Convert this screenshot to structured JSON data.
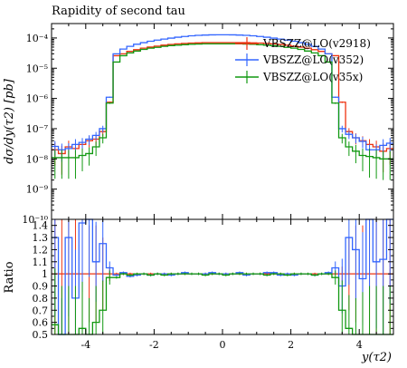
{
  "chart_data": [
    {
      "type": "line",
      "title": "Rapidity of second tau",
      "ylabel": "dσ/dy(τ2) [pb]",
      "xlim": [
        -5,
        5
      ],
      "ylim": [
        1e-10,
        0.0003
      ],
      "y_scale": "log",
      "y_ticks": [
        {
          "v": 1e-10,
          "label": "10⁻¹⁰"
        },
        {
          "v": 1e-09,
          "label": "10⁻⁹"
        },
        {
          "v": 1e-08,
          "label": "10⁻⁸"
        },
        {
          "v": 1e-07,
          "label": "10⁻⁷"
        },
        {
          "v": 1e-06,
          "label": "10⁻⁶"
        },
        {
          "v": 1e-05,
          "label": "10⁻⁵"
        },
        {
          "v": 0.0001,
          "label": "10⁻⁴"
        }
      ],
      "legend_position": "top-right",
      "x_edges": [
        -5.0,
        -4.8,
        -4.6,
        -4.4,
        -4.2,
        -4.0,
        -3.8,
        -3.6,
        -3.4,
        -3.2,
        -3.0,
        -2.8,
        -2.6,
        -2.4,
        -2.2,
        -2.0,
        -1.8,
        -1.6,
        -1.4,
        -1.2,
        -1.0,
        -0.8,
        -0.6,
        -0.4,
        -0.2,
        0.0,
        0.2,
        0.4,
        0.6,
        0.8,
        1.0,
        1.2,
        1.4,
        1.6,
        1.8,
        2.0,
        2.2,
        2.4,
        2.6,
        2.8,
        3.0,
        3.2,
        3.4,
        3.6,
        3.8,
        4.0,
        4.2,
        4.4,
        4.6,
        4.8,
        5.0
      ],
      "series": [
        {
          "name": "VBSZZ@LO(v2918)",
          "color": "#ee3311",
          "values": [
            2e-08,
            1.5e-08,
            2.5e-08,
            2.2e-08,
            3e-08,
            4e-08,
            4.5e-08,
            8e-08,
            7.5e-07,
            2.6e-05,
            3e-05,
            3.6e-05,
            4.1e-05,
            4.6e-05,
            5e-05,
            5.4e-05,
            5.8e-05,
            6.1e-05,
            6.4e-05,
            6.6e-05,
            6.8e-05,
            6.9e-05,
            7e-05,
            7e-05,
            7e-05,
            7e-05,
            7e-05,
            7e-05,
            7e-05,
            6.9e-05,
            6.8e-05,
            6.6e-05,
            6.4e-05,
            6.1e-05,
            5.8e-05,
            5.4e-05,
            5e-05,
            4.6e-05,
            4.1e-05,
            3.6e-05,
            3e-05,
            2.6e-05,
            7.5e-07,
            8e-08,
            5e-08,
            4e-08,
            3e-08,
            2.5e-08,
            1.8e-08,
            2.2e-08
          ],
          "errors": [
            0.7,
            0.8,
            0.6,
            0.6,
            0.5,
            0.4,
            0.4,
            0.3,
            0.06,
            0.01,
            0.01,
            0.01,
            0.01,
            0.01,
            0.01,
            0.01,
            0.01,
            0.01,
            0.01,
            0.01,
            0.01,
            0.01,
            0.01,
            0.01,
            0.01,
            0.01,
            0.01,
            0.01,
            0.01,
            0.01,
            0.01,
            0.01,
            0.01,
            0.01,
            0.01,
            0.01,
            0.01,
            0.01,
            0.01,
            0.01,
            0.01,
            0.01,
            0.06,
            0.3,
            0.4,
            0.4,
            0.5,
            0.6,
            0.8,
            0.7
          ]
        },
        {
          "name": "VBSZZ@LO(v352)",
          "color": "#3366ff",
          "values": [
            2.6e-08,
            2e-08,
            2.2e-08,
            3e-08,
            3.5e-08,
            4.5e-08,
            6e-08,
            1e-07,
            1.1e-06,
            3e-05,
            4.3e-05,
            5.3e-05,
            6.2e-05,
            7e-05,
            7.8e-05,
            8.5e-05,
            9.2e-05,
            9.9e-05,
            0.000106,
            0.000112,
            0.000118,
            0.000122,
            0.000125,
            0.000127,
            0.000128,
            0.000128,
            0.000127,
            0.000125,
            0.000122,
            0.000118,
            0.000112,
            0.000106,
            9.9e-05,
            9.2e-05,
            8.5e-05,
            7.8e-05,
            7e-05,
            6.2e-05,
            5.3e-05,
            4.3e-05,
            3e-05,
            1.1e-06,
            1e-07,
            6.5e-08,
            5e-08,
            3.8e-08,
            2e-08,
            2e-08,
            2.8e-08,
            3.3e-08
          ],
          "errors": [
            0.5,
            0.6,
            0.5,
            0.5,
            0.4,
            0.35,
            0.3,
            0.25,
            0.05,
            0.01,
            0.01,
            0.01,
            0.01,
            0.01,
            0.01,
            0.01,
            0.01,
            0.01,
            0.01,
            0.01,
            0.01,
            0.01,
            0.01,
            0.01,
            0.01,
            0.01,
            0.01,
            0.01,
            0.01,
            0.01,
            0.01,
            0.01,
            0.01,
            0.01,
            0.01,
            0.01,
            0.01,
            0.01,
            0.01,
            0.01,
            0.01,
            0.05,
            0.25,
            0.3,
            0.35,
            0.4,
            0.5,
            0.5,
            0.6,
            0.5
          ]
        },
        {
          "name": "VBSZZ@LO(v35x)",
          "color": "#119911",
          "values": [
            1.1e-08,
            1.1e-08,
            1.1e-08,
            1.1e-08,
            1.3e-08,
            1.5e-08,
            2.5e-08,
            5e-08,
            7e-07,
            1.6e-05,
            2.6e-05,
            3.2e-05,
            3.7e-05,
            4.2e-05,
            4.6e-05,
            4.9e-05,
            5.3e-05,
            5.6e-05,
            5.8e-05,
            6e-05,
            6.2e-05,
            6.3e-05,
            6.4e-05,
            6.4e-05,
            6.4e-05,
            6.4e-05,
            6.4e-05,
            6.4e-05,
            6.3e-05,
            6.2e-05,
            6e-05,
            5.8e-05,
            5.6e-05,
            5.3e-05,
            4.9e-05,
            4.6e-05,
            4.2e-05,
            3.7e-05,
            3.2e-05,
            2.6e-05,
            1.6e-05,
            7e-07,
            5e-08,
            2.5e-08,
            1.8e-08,
            1.3e-08,
            1.2e-08,
            1.1e-08,
            1e-08,
            1e-08
          ],
          "errors": [
            0.8,
            0.8,
            0.8,
            0.8,
            0.7,
            0.6,
            0.5,
            0.35,
            0.06,
            0.01,
            0.01,
            0.01,
            0.01,
            0.01,
            0.01,
            0.01,
            0.01,
            0.01,
            0.01,
            0.01,
            0.01,
            0.01,
            0.01,
            0.01,
            0.01,
            0.01,
            0.01,
            0.01,
            0.01,
            0.01,
            0.01,
            0.01,
            0.01,
            0.01,
            0.01,
            0.01,
            0.01,
            0.01,
            0.01,
            0.01,
            0.01,
            0.06,
            0.35,
            0.5,
            0.6,
            0.7,
            0.8,
            0.8,
            0.8,
            0.8
          ]
        }
      ]
    },
    {
      "type": "line",
      "ylabel": "Ratio",
      "xlabel": "y(τ2)",
      "xlim": [
        -5,
        5
      ],
      "ylim": [
        0.5,
        1.45
      ],
      "x_ticks": [
        {
          "v": -4,
          "label": "-4"
        },
        {
          "v": -2,
          "label": "-2"
        },
        {
          "v": 0,
          "label": "0"
        },
        {
          "v": 2,
          "label": "2"
        },
        {
          "v": 4,
          "label": "4"
        }
      ],
      "y_ticks": [
        {
          "v": 0.5,
          "label": "0.5"
        },
        {
          "v": 0.6,
          "label": "0.6"
        },
        {
          "v": 0.7,
          "label": "0.7"
        },
        {
          "v": 0.8,
          "label": "0.8"
        },
        {
          "v": 0.9,
          "label": "0.9"
        },
        {
          "v": 1.0,
          "label": "1"
        },
        {
          "v": 1.1,
          "label": "1.1"
        },
        {
          "v": 1.2,
          "label": "1.2"
        },
        {
          "v": 1.3,
          "label": "1.3"
        },
        {
          "v": 1.4,
          "label": "1.4"
        }
      ],
      "series": [
        {
          "name": "VBSZZ@LO(v2918)",
          "color": "#ee3311",
          "values": [
            1,
            1,
            1,
            1,
            1,
            1,
            1,
            1,
            1,
            1,
            1,
            1,
            1,
            1,
            1,
            1,
            1,
            1,
            1,
            1,
            1,
            1,
            1,
            1,
            1,
            1,
            1,
            1,
            1,
            1,
            1,
            1,
            1,
            1,
            1,
            1,
            1,
            1,
            1,
            1,
            1,
            1,
            1,
            1,
            1,
            1,
            1,
            1,
            1,
            1
          ],
          "band": [
            0.7,
            0.8,
            0.6,
            0.6,
            0.5,
            0.4,
            0.4,
            0.3,
            0.06,
            0.01,
            0.01,
            0.01,
            0.01,
            0.01,
            0.01,
            0.01,
            0.01,
            0.01,
            0.01,
            0.01,
            0.01,
            0.01,
            0.01,
            0.01,
            0.01,
            0.01,
            0.01,
            0.01,
            0.01,
            0.01,
            0.01,
            0.01,
            0.01,
            0.01,
            0.01,
            0.01,
            0.01,
            0.01,
            0.01,
            0.01,
            0.01,
            0.01,
            0.06,
            0.3,
            0.4,
            0.4,
            0.5,
            0.6,
            0.8,
            0.7
          ]
        },
        {
          "name": "VBSZZ@LO(v352)",
          "color": "#3366ff",
          "values": [
            1.3,
            0.5,
            1.3,
            0.8,
            1.42,
            1.5,
            1.1,
            1.25,
            1.05,
            0.99,
            1.01,
            0.98,
            0.99,
            1.0,
            0.99,
            1.0,
            1.0,
            0.99,
            1.0,
            1.01,
            1.0,
            1.0,
            1.0,
            1.01,
            1.0,
            1.0,
            1.0,
            1.01,
            0.99,
            1.0,
            1.0,
            1.01,
            1.01,
            0.99,
            1.0,
            0.99,
            1.0,
            1.0,
            0.99,
            1.0,
            1.01,
            1.05,
            0.9,
            1.3,
            1.2,
            0.96,
            1.5,
            1.1,
            1.12,
            1.5
          ],
          "errors": [
            0.5,
            0.6,
            0.5,
            0.5,
            0.4,
            0.35,
            0.3,
            0.25,
            0.05,
            0.01,
            0.01,
            0.01,
            0.01,
            0.01,
            0.01,
            0.01,
            0.01,
            0.01,
            0.01,
            0.01,
            0.01,
            0.01,
            0.01,
            0.01,
            0.01,
            0.01,
            0.01,
            0.01,
            0.01,
            0.01,
            0.01,
            0.01,
            0.01,
            0.01,
            0.01,
            0.01,
            0.01,
            0.01,
            0.01,
            0.01,
            0.01,
            0.05,
            0.25,
            0.3,
            0.35,
            0.4,
            0.5,
            0.5,
            0.6,
            0.5
          ]
        },
        {
          "name": "VBSZZ@LO(v35x)",
          "color": "#119911",
          "values": [
            0.58,
            0.5,
            0.5,
            0.5,
            0.55,
            0.5,
            0.6,
            0.7,
            0.97,
            0.97,
            1.0,
            0.99,
            1.0,
            1.0,
            0.99,
            1.0,
            0.99,
            1.0,
            1.0,
            1.0,
            1.0,
            1.0,
            0.99,
            1.0,
            1.0,
            0.99,
            1.0,
            1.0,
            1.0,
            1.0,
            1.0,
            0.99,
            1.0,
            1.0,
            0.99,
            1.0,
            1.0,
            1.0,
            0.99,
            1.0,
            1.0,
            0.97,
            0.7,
            0.55,
            0.5,
            0.5,
            0.5,
            0.5,
            0.5,
            0.5
          ],
          "errors": [
            0.8,
            0.8,
            0.8,
            0.8,
            0.7,
            0.6,
            0.5,
            0.35,
            0.06,
            0.01,
            0.01,
            0.01,
            0.01,
            0.01,
            0.01,
            0.01,
            0.01,
            0.01,
            0.01,
            0.01,
            0.01,
            0.01,
            0.01,
            0.01,
            0.01,
            0.01,
            0.01,
            0.01,
            0.01,
            0.01,
            0.01,
            0.01,
            0.01,
            0.01,
            0.01,
            0.01,
            0.01,
            0.01,
            0.01,
            0.01,
            0.01,
            0.06,
            0.35,
            0.5,
            0.6,
            0.7,
            0.8,
            0.8,
            0.8,
            0.8
          ]
        }
      ]
    }
  ]
}
